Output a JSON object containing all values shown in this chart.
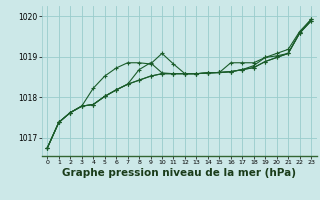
{
  "background_color": "#cce8e8",
  "grid_color": "#99cccc",
  "line_color": "#1a5c2a",
  "marker_color": "#1a5c2a",
  "xlabel": "Graphe pression niveau de la mer (hPa)",
  "xlabel_fontsize": 7.5,
  "xlim": [
    -0.5,
    23.5
  ],
  "ylim": [
    1016.55,
    1020.25
  ],
  "yticks": [
    1017,
    1018,
    1019,
    1020
  ],
  "xticks": [
    0,
    1,
    2,
    3,
    4,
    5,
    6,
    7,
    8,
    9,
    10,
    11,
    12,
    13,
    14,
    15,
    16,
    17,
    18,
    19,
    20,
    21,
    22,
    23
  ],
  "series": [
    [
      1016.75,
      1017.38,
      1017.62,
      1017.78,
      1017.82,
      1018.02,
      1018.18,
      1018.32,
      1018.42,
      1018.52,
      1018.58,
      1018.58,
      1018.58,
      1018.58,
      1018.6,
      1018.61,
      1018.63,
      1018.68,
      1018.73,
      1018.88,
      1018.98,
      1019.08,
      1019.58,
      1019.88
    ],
    [
      1016.75,
      1017.38,
      1017.62,
      1017.78,
      1018.22,
      1018.52,
      1018.72,
      1018.85,
      1018.85,
      1018.82,
      1019.08,
      1018.82,
      1018.58,
      1018.58,
      1018.6,
      1018.61,
      1018.63,
      1018.68,
      1018.78,
      1018.98,
      1019.08,
      1019.18,
      1019.62,
      1019.92
    ],
    [
      1016.75,
      1017.38,
      1017.62,
      1017.78,
      1017.82,
      1018.02,
      1018.18,
      1018.32,
      1018.68,
      1018.85,
      1018.6,
      1018.58,
      1018.58,
      1018.58,
      1018.6,
      1018.61,
      1018.85,
      1018.85,
      1018.85,
      1018.98,
      1019.02,
      1019.08,
      1019.58,
      1019.92
    ],
    [
      1016.75,
      1017.38,
      1017.62,
      1017.78,
      1017.82,
      1018.02,
      1018.18,
      1018.32,
      1018.42,
      1018.52,
      1018.58,
      1018.58,
      1018.58,
      1018.58,
      1018.6,
      1018.61,
      1018.63,
      1018.68,
      1018.73,
      1018.88,
      1018.98,
      1019.08,
      1019.58,
      1019.88
    ]
  ]
}
